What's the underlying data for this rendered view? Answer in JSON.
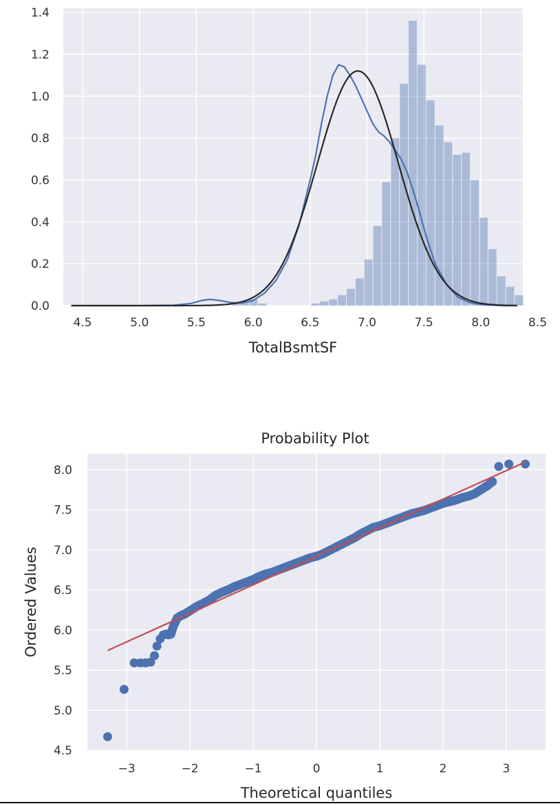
{
  "chart_data": [
    {
      "type": "histogram",
      "title": "",
      "xlabel": "TotalBsmtSF",
      "ylabel": "",
      "xlim": [
        4.33,
        8.37
      ],
      "ylim": [
        0,
        1.42
      ],
      "xticks": [
        4.5,
        5.0,
        5.5,
        6.0,
        6.5,
        7.0,
        7.5,
        8.0,
        8.5
      ],
      "xtick_labels": [
        "4.5",
        "5.0",
        "5.5",
        "6.0",
        "6.5",
        "7.0",
        "7.5",
        "8.0",
        "8.5"
      ],
      "yticks": [
        0.0,
        0.2,
        0.4,
        0.6,
        0.8,
        1.0,
        1.2,
        1.4
      ],
      "ytick_labels": [
        "0.0",
        "0.2",
        "0.4",
        "0.6",
        "0.8",
        "1.0",
        "1.2",
        "1.4"
      ],
      "grid": true,
      "bins": {
        "start": 4.41,
        "width": 0.0778,
        "values": [
          0,
          0,
          0,
          0,
          0,
          0,
          0,
          0,
          0,
          0,
          0,
          0,
          0,
          0,
          0,
          0,
          0,
          0,
          0.01,
          0.02,
          0.03,
          0.01,
          0,
          0,
          0,
          0,
          0,
          0.01,
          0.02,
          0.03,
          0.05,
          0.08,
          0.13,
          0.22,
          0.38,
          0.59,
          0.8,
          1.06,
          1.36,
          1.15,
          0.98,
          0.86,
          0.78,
          0.72,
          0.73,
          0.6,
          0.42,
          0.27,
          0.14,
          0.09,
          0.05
        ]
      },
      "series": [
        {
          "name": "kde",
          "color": "#4c72b0",
          "x": [
            4.4,
            5.0,
            5.3,
            5.45,
            5.55,
            5.62,
            5.7,
            5.8,
            5.9,
            6.0,
            6.1,
            6.2,
            6.3,
            6.4,
            6.5,
            6.55,
            6.6,
            6.65,
            6.7,
            6.75,
            6.8,
            6.85,
            6.9,
            6.95,
            7.0,
            7.05,
            7.1,
            7.15,
            7.2,
            7.25,
            7.3,
            7.35,
            7.4,
            7.45,
            7.5,
            7.55,
            7.6,
            7.7,
            7.8,
            7.9,
            8.0,
            8.1,
            8.2,
            8.32
          ],
          "y": [
            0.0,
            0.0,
            0.002,
            0.01,
            0.025,
            0.03,
            0.025,
            0.015,
            0.012,
            0.025,
            0.06,
            0.12,
            0.22,
            0.38,
            0.6,
            0.72,
            0.87,
            1.0,
            1.1,
            1.15,
            1.14,
            1.1,
            1.05,
            0.99,
            0.93,
            0.87,
            0.83,
            0.81,
            0.78,
            0.74,
            0.7,
            0.64,
            0.56,
            0.47,
            0.37,
            0.28,
            0.2,
            0.1,
            0.04,
            0.015,
            0.005,
            0.002,
            0.0,
            0.0
          ]
        },
        {
          "name": "norm fit",
          "color": "#262626",
          "mu": 6.92,
          "sigma": 0.356,
          "x_range": [
            4.4,
            8.32
          ]
        }
      ],
      "colors": {
        "bar": "#4c72b0",
        "background": "#eaeaf2",
        "grid": "#ffffff"
      }
    },
    {
      "type": "scatter",
      "title": "Probability Plot",
      "xlabel": "Theoretical quantiles",
      "ylabel": "Ordered Values",
      "xlim": [
        -3.62,
        3.62
      ],
      "ylim": [
        4.5,
        8.2
      ],
      "xticks": [
        -3,
        -2,
        -1,
        0,
        1,
        2,
        3
      ],
      "xtick_labels": [
        "−3",
        "−2",
        "−1",
        "0",
        "1",
        "2",
        "3"
      ],
      "yticks": [
        4.5,
        5.0,
        5.5,
        6.0,
        6.5,
        7.0,
        7.5,
        8.0
      ],
      "ytick_labels": [
        "4.5",
        "5.0",
        "5.5",
        "6.0",
        "6.5",
        "7.0",
        "7.5",
        "8.0"
      ],
      "grid": true,
      "points_x": [
        -3.3,
        -3.04,
        -2.88,
        -2.78,
        -2.7,
        -2.62,
        -2.56,
        -2.52,
        -2.47,
        -2.42,
        -2.38,
        -2.34,
        -2.3,
        -2.26,
        -2.2,
        -2.14,
        -2.08,
        -2.0,
        -1.9,
        -1.8,
        -1.7,
        -1.6,
        -1.5,
        -1.4,
        -1.3,
        -1.2,
        -1.1,
        -1.0,
        -0.9,
        -0.8,
        -0.7,
        -0.6,
        -0.5,
        -0.4,
        -0.3,
        -0.2,
        -0.1,
        0.0,
        0.1,
        0.2,
        0.3,
        0.4,
        0.5,
        0.6,
        0.7,
        0.8,
        0.9,
        1.0,
        1.1,
        1.2,
        1.3,
        1.4,
        1.5,
        1.6,
        1.7,
        1.8,
        1.9,
        2.0,
        2.1,
        2.2,
        2.3,
        2.4,
        2.5,
        2.6,
        2.7,
        2.78,
        2.88,
        3.04,
        3.3
      ],
      "points_y": [
        4.67,
        5.26,
        5.59,
        5.59,
        5.59,
        5.6,
        5.68,
        5.8,
        5.89,
        5.94,
        5.95,
        5.94,
        5.95,
        6.05,
        6.15,
        6.18,
        6.2,
        6.24,
        6.29,
        6.33,
        6.37,
        6.43,
        6.47,
        6.5,
        6.54,
        6.57,
        6.6,
        6.63,
        6.67,
        6.7,
        6.72,
        6.75,
        6.78,
        6.81,
        6.84,
        6.87,
        6.9,
        6.92,
        6.95,
        6.99,
        7.03,
        7.07,
        7.11,
        7.15,
        7.2,
        7.24,
        7.28,
        7.3,
        7.33,
        7.36,
        7.39,
        7.42,
        7.45,
        7.47,
        7.49,
        7.52,
        7.55,
        7.58,
        7.6,
        7.62,
        7.65,
        7.67,
        7.7,
        7.75,
        7.8,
        7.85,
        8.04,
        8.07,
        8.07
      ],
      "fit_line": {
        "slope": 0.356,
        "intercept": 6.92,
        "x_range": [
          -3.3,
          3.3
        ]
      },
      "colors": {
        "points": "#4c72b0",
        "line": "#c44e52",
        "background": "#eaeaf2",
        "grid": "#ffffff"
      }
    }
  ]
}
